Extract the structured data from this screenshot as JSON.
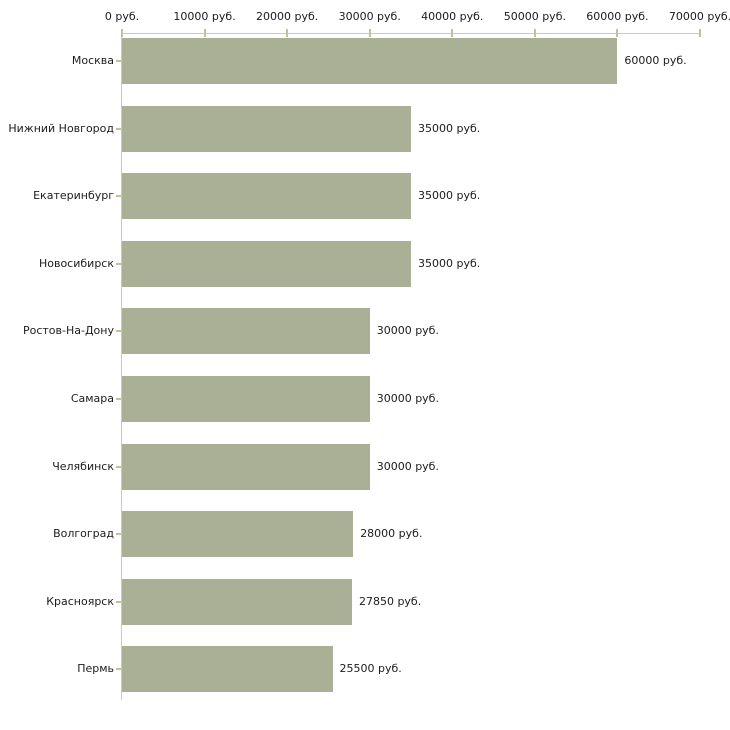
{
  "chart_data": {
    "type": "bar",
    "orientation": "horizontal",
    "title": "",
    "xlabel": "",
    "ylabel": "",
    "categories": [
      "Москва",
      "Нижний Новгород",
      "Екатеринбург",
      "Новосибирск",
      "Ростов-На-Дону",
      "Самара",
      "Челябинск",
      "Волгоград",
      "Красноярск",
      "Пермь"
    ],
    "values": [
      60000,
      35000,
      35000,
      35000,
      30000,
      30000,
      30000,
      28000,
      27850,
      25500
    ],
    "value_labels": [
      "60000 руб.",
      "35000 руб.",
      "35000 руб.",
      "35000 руб.",
      "30000 руб.",
      "30000 руб.",
      "30000 руб.",
      "28000 руб.",
      "27850 руб.",
      "25500 руб."
    ],
    "xlim": [
      0,
      70000
    ],
    "x_ticks": [
      0,
      10000,
      20000,
      30000,
      40000,
      50000,
      60000,
      70000
    ],
    "x_tick_labels": [
      "0 руб.",
      "10000 руб.",
      "20000 руб.",
      "30000 руб.",
      "40000 руб.",
      "50000 руб.",
      "60000 руб.",
      "70000 руб."
    ],
    "unit_suffix": " руб.",
    "axis_position": "top",
    "grid": false,
    "legend": false,
    "colors": {
      "bar": "#aab095",
      "axis_line": "#c9c9c9",
      "tick": "#c2c29a",
      "text": "#1c1c1c",
      "background": "#ffffff"
    }
  }
}
